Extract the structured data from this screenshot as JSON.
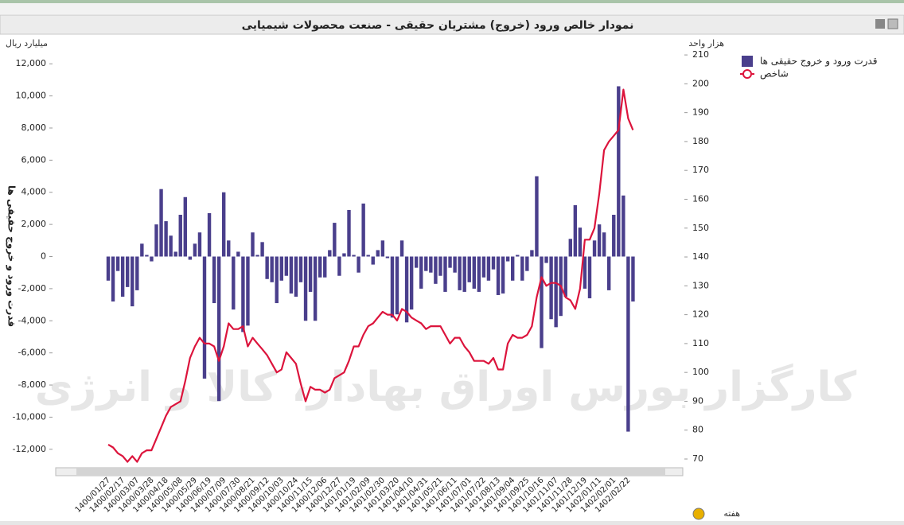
{
  "chart_data": {
    "type": "bar",
    "title": "نمودار خالص ورود (خروج) مشتریان حقیقی - صنعت محصولات شیمیایی",
    "ylabel": "قدرت ورود و خروج حقیقی ها",
    "y_unit": "میلیارد ریال",
    "y2_unit": "هزار واحد",
    "x_unit": "هفته",
    "watermark": "کارگزار بورس اوراق بهادار، کالا و انرژی",
    "categories": [
      "1400/01/27",
      null,
      null,
      "1400/02/17",
      null,
      null,
      "1400/03/07",
      null,
      null,
      "1400/03/28",
      null,
      null,
      "1400/04/18",
      null,
      null,
      "1400/05/08",
      null,
      null,
      "1400/05/29",
      null,
      null,
      "1400/06/19",
      null,
      null,
      "1400/07/09",
      null,
      null,
      "1400/07/30",
      null,
      null,
      "1400/08/21",
      null,
      null,
      "1400/09/12",
      null,
      null,
      "1400/10/03",
      null,
      null,
      "1400/10/24",
      null,
      null,
      "1400/11/15",
      null,
      null,
      "1400/12/06",
      null,
      null,
      "1400/12/27",
      null,
      null,
      "1401/01/19",
      null,
      null,
      "1401/02/09",
      null,
      null,
      "1401/02/30",
      null,
      null,
      "1401/03/20",
      null,
      null,
      "1401/04/10",
      null,
      null,
      "1401/04/31",
      null,
      null,
      "1401/05/21",
      null,
      null,
      "1401/06/11",
      null,
      null,
      "1401/07/01",
      null,
      null,
      "1401/07/22",
      null,
      null,
      "1401/08/13",
      null,
      null,
      "1401/09/04",
      null,
      null,
      "1401/09/25",
      null,
      null,
      "1401/10/16",
      null,
      null,
      "1401/11/07",
      null,
      null,
      "1401/11/28",
      null,
      null,
      "1401/12/19",
      null,
      null,
      "1402/01/11",
      null,
      null,
      "1402/02/01",
      null,
      null,
      "1402/02/22",
      null
    ],
    "series": [
      {
        "name": "قدرت ورود و خروج حقیقی ها",
        "type": "bar",
        "color": "#4a3f8c",
        "values": [
          -1500,
          -2800,
          -900,
          -2500,
          -1900,
          -3100,
          -2100,
          800,
          100,
          -300,
          2000,
          4200,
          2200,
          1300,
          300,
          2600,
          3700,
          -200,
          800,
          1500,
          -7600,
          2700,
          -2900,
          -9000,
          4000,
          1000,
          -3300,
          300,
          -4700,
          -4300,
          1500,
          100,
          900,
          -1400,
          -1600,
          -2900,
          -1500,
          -1200,
          -2300,
          -2500,
          -1600,
          -4000,
          -2200,
          -4000,
          -1300,
          -1300,
          400,
          2100,
          -1200,
          200,
          2900,
          100,
          -1000,
          3300,
          100,
          -500,
          400,
          1000,
          -100,
          -3800,
          -3600,
          1000,
          -4100,
          -3300,
          -700,
          -2000,
          -900,
          -1000,
          -1700,
          -1200,
          -2200,
          -700,
          -1000,
          -2100,
          -2200,
          -1600,
          -2000,
          -2200,
          -1300,
          -1500,
          -800,
          -2400,
          -2300,
          -300,
          -1500,
          100,
          -1500,
          -900,
          400,
          5000,
          -5700,
          -400,
          -3900,
          -4400,
          -3700,
          -2500,
          1100,
          3200,
          1800,
          -2000,
          -2600,
          1000,
          2000,
          1500,
          -2100,
          2600,
          10600,
          3800,
          -10900,
          -2800
        ]
      },
      {
        "name": "شاخص",
        "type": "line",
        "axis": "y2",
        "color": "#dc143c",
        "values": [
          75,
          74,
          72,
          71,
          69,
          71,
          69,
          72,
          73,
          73,
          77,
          81,
          85,
          88,
          89,
          90,
          97,
          105,
          109,
          112,
          110,
          110,
          109,
          104,
          109,
          117,
          115,
          115,
          116,
          109,
          112,
          110,
          108,
          106,
          103,
          100,
          101,
          107,
          105,
          103,
          96,
          90,
          95,
          94,
          94,
          93,
          94,
          98,
          99,
          100,
          104,
          109,
          109,
          113,
          116,
          117,
          119,
          121,
          120,
          120,
          118,
          122,
          121,
          119,
          118,
          117,
          115,
          116,
          116,
          116,
          113,
          110,
          112,
          112,
          109,
          107,
          104,
          104,
          104,
          103,
          105,
          101,
          101,
          110,
          113,
          112,
          112,
          113,
          116,
          126,
          133,
          130,
          131,
          131,
          130,
          126,
          125,
          122,
          129,
          146,
          146,
          150,
          162,
          177,
          180,
          182,
          184,
          198,
          188,
          184
        ]
      }
    ],
    "ylim": [
      -13000,
      13000
    ],
    "yticks": [
      {
        "value": -12000,
        "label": "-12,000"
      },
      {
        "value": -10000,
        "label": "-10,000"
      },
      {
        "value": -8000,
        "label": "-8,000"
      },
      {
        "value": -6000,
        "label": "-6,000"
      },
      {
        "value": -4000,
        "label": "-4,000"
      },
      {
        "value": -2000,
        "label": "-2,000"
      },
      0,
      {
        "value": 2000,
        "label": "2,000"
      },
      {
        "value": 4000,
        "label": "4,000"
      },
      {
        "value": 6000,
        "label": "6,000"
      },
      {
        "value": 8000,
        "label": "8,000"
      },
      {
        "value": 10000,
        "label": "10,000"
      },
      {
        "value": 12000,
        "label": "12,000"
      }
    ],
    "y2lim": [
      67.8,
      212.5
    ],
    "y2ticks": [
      70,
      80,
      90,
      100,
      110,
      120,
      130,
      140,
      150,
      160,
      170,
      180,
      190,
      200,
      210
    ],
    "grid": false,
    "legend": "top-right"
  }
}
